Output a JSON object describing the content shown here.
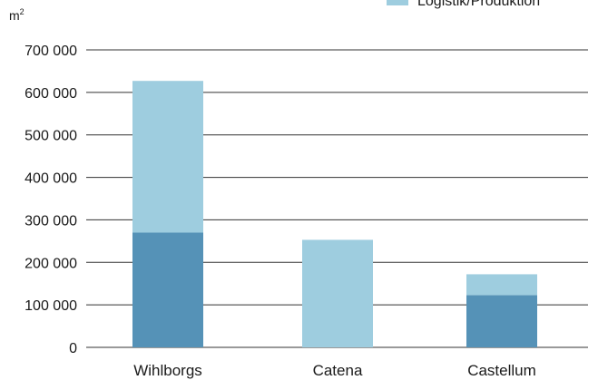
{
  "chart_data": {
    "type": "bar",
    "stacked": true,
    "categories": [
      "Wihlborgs",
      "Catena",
      "Castellum"
    ],
    "series": [
      {
        "name": "",
        "color": "#5592b7",
        "values": [
          270000,
          0,
          123000
        ]
      },
      {
        "name": "Logistik/Produktion",
        "color": "#9ecddf",
        "values": [
          357000,
          253000,
          49000
        ]
      }
    ],
    "yunit": {
      "base": "m",
      "sup": "2"
    },
    "ylim": [
      0,
      700000
    ],
    "yticks": [
      0,
      100000,
      200000,
      300000,
      400000,
      500000,
      600000,
      700000
    ],
    "ytick_labels": [
      "0",
      "100 000",
      "200 000",
      "300 000",
      "400 000",
      "500 000",
      "600 000",
      "700 000"
    ],
    "grid": true,
    "legend_position": "top-right"
  }
}
